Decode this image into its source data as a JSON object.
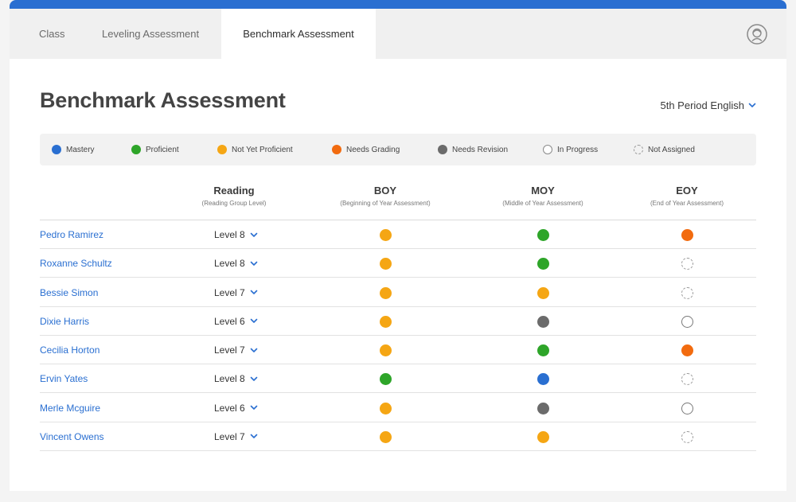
{
  "tabs": [
    {
      "label": "Class",
      "active": false
    },
    {
      "label": "Leveling Assessment",
      "active": false
    },
    {
      "label": "Benchmark Assessment",
      "active": true
    }
  ],
  "header": {
    "title": "Benchmark Assessment",
    "class_selector": "5th Period English"
  },
  "statuses": {
    "mastery": {
      "label": "Mastery",
      "color": "#2a6fd1"
    },
    "proficient": {
      "label": "Proficient",
      "color": "#2ea529"
    },
    "not_yet_proficient": {
      "label": "Not Yet Proficient",
      "color": "#f5a614"
    },
    "needs_grading": {
      "label": "Needs Grading",
      "color": "#f26b0f"
    },
    "needs_revision": {
      "label": "Needs Revision",
      "color": "#6b6b6b"
    },
    "in_progress": {
      "label": "In Progress",
      "color": "#8a8a8a"
    },
    "not_assigned": {
      "label": "Not Assigned",
      "color": "#9a9a9a"
    }
  },
  "columns": {
    "reading": {
      "title": "Reading",
      "subtitle": "(Reading Group Level)"
    },
    "boy": {
      "title": "BOY",
      "subtitle": "(Beginning of Year Assessment)"
    },
    "moy": {
      "title": "MOY",
      "subtitle": "(Middle of Year Assessment)"
    },
    "eoy": {
      "title": "EOY",
      "subtitle": "(End of Year Assessment)"
    }
  },
  "students": [
    {
      "name": "Pedro Ramirez",
      "level": "Level 8",
      "boy": "not_yet_proficient",
      "moy": "proficient",
      "eoy": "needs_grading"
    },
    {
      "name": "Roxanne Schultz",
      "level": "Level 8",
      "boy": "not_yet_proficient",
      "moy": "proficient",
      "eoy": "not_assigned"
    },
    {
      "name": "Bessie Simon",
      "level": "Level 7",
      "boy": "not_yet_proficient",
      "moy": "not_yet_proficient",
      "eoy": "not_assigned"
    },
    {
      "name": "Dixie Harris",
      "level": "Level 6",
      "boy": "not_yet_proficient",
      "moy": "needs_revision",
      "eoy": "in_progress"
    },
    {
      "name": "Cecilia Horton",
      "level": "Level 7",
      "boy": "not_yet_proficient",
      "moy": "proficient",
      "eoy": "needs_grading"
    },
    {
      "name": "Ervin Yates",
      "level": "Level 8",
      "boy": "proficient",
      "moy": "mastery",
      "eoy": "not_assigned"
    },
    {
      "name": "Merle Mcguire",
      "level": "Level 6",
      "boy": "not_yet_proficient",
      "moy": "needs_revision",
      "eoy": "in_progress"
    },
    {
      "name": "Vincent Owens",
      "level": "Level 7",
      "boy": "not_yet_proficient",
      "moy": "not_yet_proficient",
      "eoy": "not_assigned"
    }
  ]
}
